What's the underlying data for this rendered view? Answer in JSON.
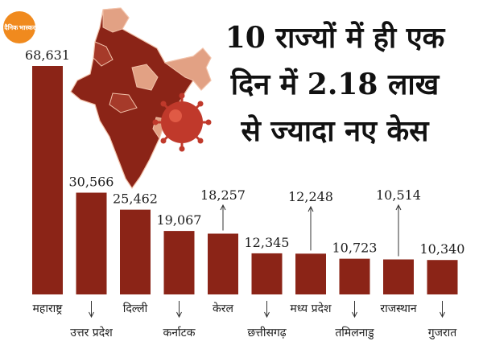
{
  "logo": {
    "line1": "दैनिक",
    "line2": "भास्कर"
  },
  "headline": {
    "line1": "10 राज्यों में ही एक",
    "line2": "दिन में 2.18 लाख",
    "line3": "से ज्यादा नए केस"
  },
  "colors": {
    "bar": "#8b2417",
    "map_dark": "#8b2417",
    "map_light": "#e2a184",
    "virus": "#c0392b"
  },
  "icons": {
    "map": "india-map-icon",
    "virus": "coronavirus-icon"
  },
  "chart_data": {
    "type": "bar",
    "categories": [
      "महाराष्ट्र",
      "उत्तर प्रदेश",
      "दिल्ली",
      "कर्नाटक",
      "केरल",
      "छत्तीसगढ़",
      "मध्य प्रदेश",
      "तमिलनाडु",
      "राजस्थान",
      "गुजरात"
    ],
    "values": [
      68631,
      30566,
      25462,
      19067,
      18257,
      12345,
      12248,
      10723,
      10514,
      10340
    ],
    "value_labels": [
      "68,631",
      "30,566",
      "25,462",
      "19,067",
      "18,257",
      "12,345",
      "12,248",
      "10,723",
      "10,514",
      "10,340"
    ],
    "title": "",
    "xlabel": "",
    "ylabel": "",
    "ylim": [
      0,
      68631
    ],
    "grid": false,
    "legend": "none"
  }
}
